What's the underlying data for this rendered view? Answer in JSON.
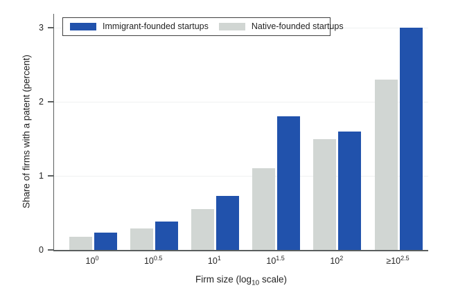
{
  "chart_data": {
    "type": "bar",
    "title": "",
    "xlabel": "Firm size (log10 scale)",
    "xlabel_parts": {
      "pre": "Firm size (log",
      "sub": "10",
      "post": " scale)"
    },
    "ylabel": "Share of firms with a patent (percent)",
    "categories_text": [
      "10^0",
      "10^0.5",
      "10^1",
      "10^1.5",
      "10^2",
      "≥10^2.5"
    ],
    "categories": [
      {
        "prefix": "",
        "base": "10",
        "sup": "0"
      },
      {
        "prefix": "",
        "base": "10",
        "sup": "0.5"
      },
      {
        "prefix": "",
        "base": "10",
        "sup": "1"
      },
      {
        "prefix": "",
        "base": "10",
        "sup": "1.5"
      },
      {
        "prefix": "",
        "base": "10",
        "sup": "2"
      },
      {
        "prefix": "≥",
        "base": "10",
        "sup": "2.5"
      }
    ],
    "series": [
      {
        "name": "Immigrant-founded startups",
        "color": "#2152ac",
        "values": [
          0.23,
          0.38,
          0.73,
          1.8,
          1.6,
          3.0
        ]
      },
      {
        "name": "Native-founded startups",
        "color": "#d1d6d3",
        "values": [
          0.18,
          0.29,
          0.55,
          1.1,
          1.5,
          2.3
        ]
      }
    ],
    "series_draw_order": [
      1,
      0
    ],
    "yticks": [
      "0",
      "1",
      "2",
      "3"
    ],
    "ylim": [
      0,
      3
    ],
    "grid": "horizontal",
    "gridline_values": [
      1,
      2,
      3
    ],
    "legend_position": "top-left",
    "colors": {
      "axis": "#5a5e5e",
      "grid": "#eff1f0",
      "text": "#232323",
      "background": "#ffffff"
    }
  }
}
